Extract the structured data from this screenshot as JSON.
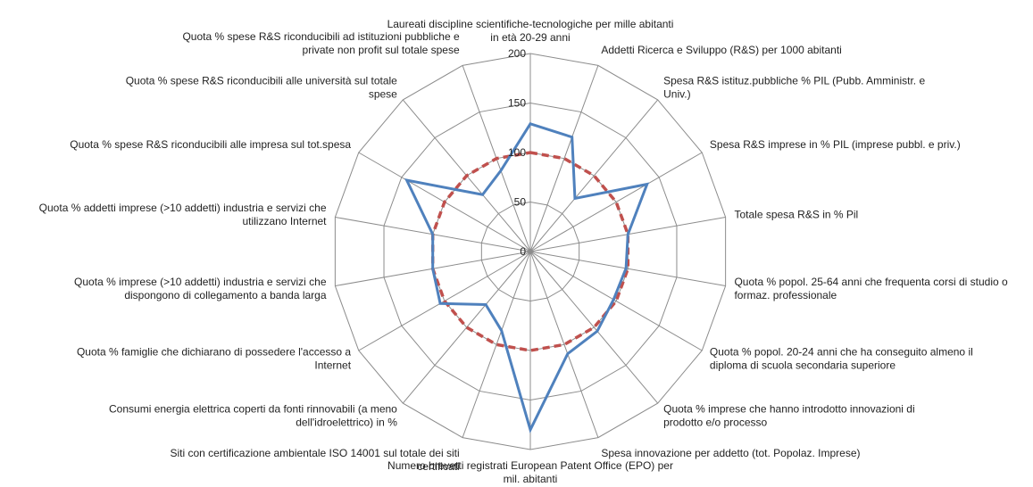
{
  "chart_data": {
    "type": "radar",
    "title": "",
    "rlim": [
      0,
      200
    ],
    "ticks": [
      "0",
      "50",
      "100",
      "150",
      "200"
    ],
    "grid": true,
    "legend": "none",
    "categories": [
      "Laureati discipline scientifiche-tecnologiche per mille abitanti in età 20-29 anni",
      "Addetti Ricerca e Sviluppo (R&S) per 1000 abitanti",
      "Spesa R&S istituz.pubbliche % PIL (Pubb. Amministr. e Univ.)",
      "Spesa R&S imprese in % PIL (imprese pubbl. e priv.)",
      "Totale spesa R&S in % Pil",
      "Quota % popol. 25-64 anni che frequenta corsi di studio o formaz. professionale",
      "Quota % popol. 20-24 anni che ha conseguito almeno il diploma di scuola secondaria superiore",
      "Quota % imprese che hanno introdotto innovazioni di prodotto e/o processo",
      "Spesa innovazione per addetto (tot. Popolaz. Imprese)",
      "Numero brevetti registrati European Patent Office (EPO) per mil. abitanti",
      "Siti con certificazione ambientale ISO 14001 sul totale dei siti certificati",
      "Consumi energia elettrica coperti da fonti rinnovabili (a meno dell'idroelettrico) in %",
      "Quota % famiglie che dichiarano di possedere l'accesso a Internet",
      "Quota % imprese (>10 addetti) industria e servizi che dispongono di collegamento a banda larga",
      "Quota % addetti imprese (>10 addetti) industria e servizi che utilizzano Internet",
      "Quota % spese R&S riconducibili alle impresa sul tot.spesa",
      "Quota % spese R&S riconducibili alle università sul totale spese",
      "Quota % spese R&S riconducibili ad istituzioni pubbliche e private non profit sul totale spese"
    ],
    "series": [
      {
        "color": "#4F81BD",
        "style": "solid",
        "values": [
          129,
          123,
          70,
          136,
          100,
          98,
          97,
          105,
          110,
          180,
          85,
          70,
          105,
          100,
          100,
          144,
          75,
          87
        ]
      },
      {
        "color": "#C0504D",
        "style": "dashed",
        "values": [
          100,
          100,
          100,
          100,
          100,
          100,
          100,
          100,
          100,
          100,
          100,
          100,
          100,
          100,
          100,
          100,
          100,
          100
        ]
      }
    ]
  },
  "labels": [
    {
      "lines": [
        "Laureati discipline scientifiche-tecnologiche per mille abitanti",
        "in età 20-29 anni"
      ]
    },
    {
      "lines": [
        "Addetti Ricerca e Sviluppo (R&S) per 1000 abitanti"
      ]
    },
    {
      "lines": [
        "Spesa R&S istituz.pubbliche % PIL (Pubb. Amministr. e",
        "Univ.)"
      ]
    },
    {
      "lines": [
        "Spesa R&S imprese in % PIL (imprese pubbl. e priv.)"
      ]
    },
    {
      "lines": [
        "Totale spesa R&S in % Pil"
      ]
    },
    {
      "lines": [
        "Quota % popol. 25-64 anni che frequenta corsi di studio o",
        "formaz. professionale"
      ]
    },
    {
      "lines": [
        "Quota % popol. 20-24 anni che ha conseguito almeno il",
        "diploma di scuola secondaria superiore"
      ]
    },
    {
      "lines": [
        "Quota % imprese che hanno introdotto innovazioni di",
        "prodotto e/o processo"
      ]
    },
    {
      "lines": [
        "Spesa innovazione per addetto (tot. Popolaz. Imprese)"
      ]
    },
    {
      "lines": [
        "Numero brevetti registrati European Patent Office (EPO) per",
        "mil. abitanti"
      ]
    },
    {
      "lines": [
        "Siti con certificazione ambientale ISO 14001 sul totale dei siti",
        "certificati"
      ]
    },
    {
      "lines": [
        "Consumi energia elettrica coperti da fonti rinnovabili (a meno",
        "dell'idroelettrico) in %"
      ]
    },
    {
      "lines": [
        "Quota % famiglie che dichiarano di possedere l'accesso a",
        "Internet"
      ]
    },
    {
      "lines": [
        "Quota % imprese (>10 addetti) industria e servizi che",
        "dispongono di collegamento a banda larga"
      ]
    },
    {
      "lines": [
        "Quota % addetti imprese (>10 addetti) industria e servizi che",
        "utilizzano Internet"
      ]
    },
    {
      "lines": [
        "Quota % spese R&S riconducibili alle impresa sul tot.spesa"
      ]
    },
    {
      "lines": [
        "Quota % spese R&S riconducibili alle università sul totale",
        "spese"
      ]
    },
    {
      "lines": [
        "Quota % spese R&S riconducibili ad istituzioni pubbliche e",
        "private non profit sul totale spese"
      ]
    }
  ]
}
